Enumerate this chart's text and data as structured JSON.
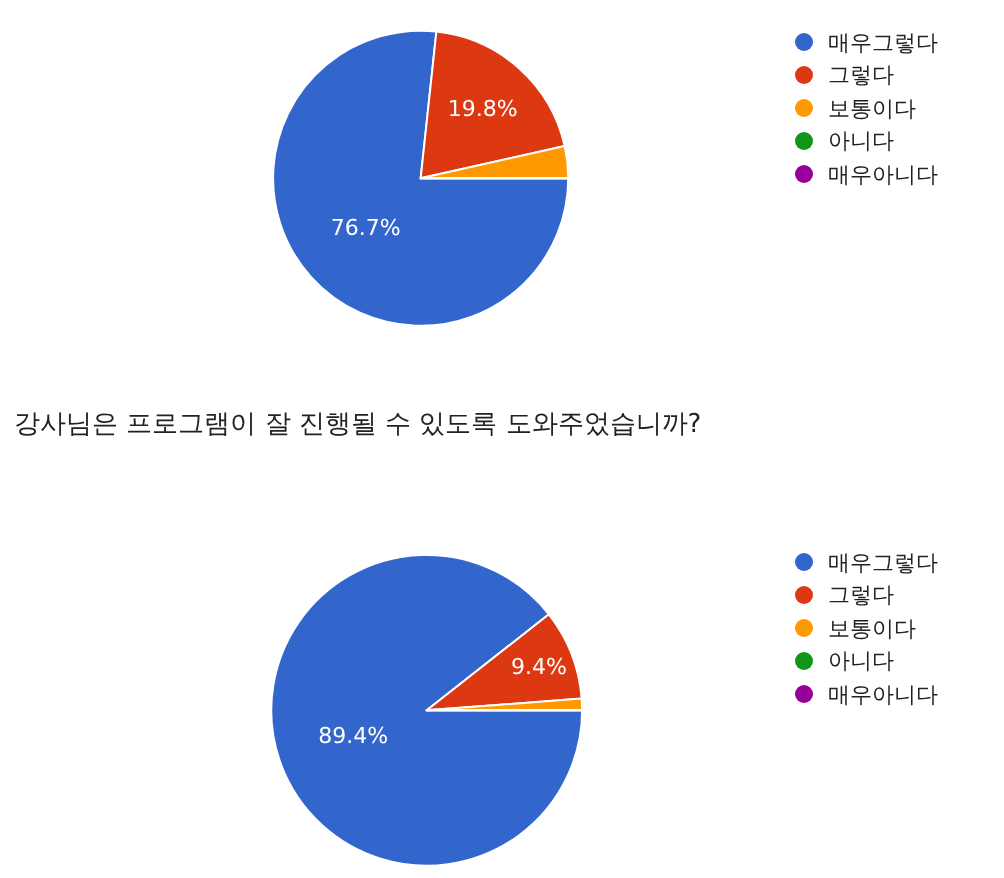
{
  "chart_data": [
    {
      "type": "pie",
      "categories": [
        "매우그렇다",
        "그렇다",
        "보통이다",
        "아니다",
        "매우아니다"
      ],
      "values": [
        76.7,
        19.8,
        3.5,
        0,
        0
      ],
      "colors": [
        "#3366cc",
        "#dc3912",
        "#ff9900",
        "#109618",
        "#990099"
      ],
      "value_labels": [
        "76.7%",
        "19.8%",
        null,
        null,
        null
      ],
      "legend": "right"
    },
    {
      "type": "pie",
      "title": "강사님은 프로그램이 잘 진행될 수 있도록 도와주었습니까?",
      "categories": [
        "매우그렇다",
        "그렇다",
        "보통이다",
        "아니다",
        "매우아니다"
      ],
      "values": [
        89.4,
        9.4,
        1.2,
        0,
        0
      ],
      "colors": [
        "#3366cc",
        "#dc3912",
        "#ff9900",
        "#109618",
        "#990099"
      ],
      "value_labels": [
        "89.4%",
        "9.4%",
        null,
        null,
        null
      ],
      "legend": "right"
    }
  ]
}
